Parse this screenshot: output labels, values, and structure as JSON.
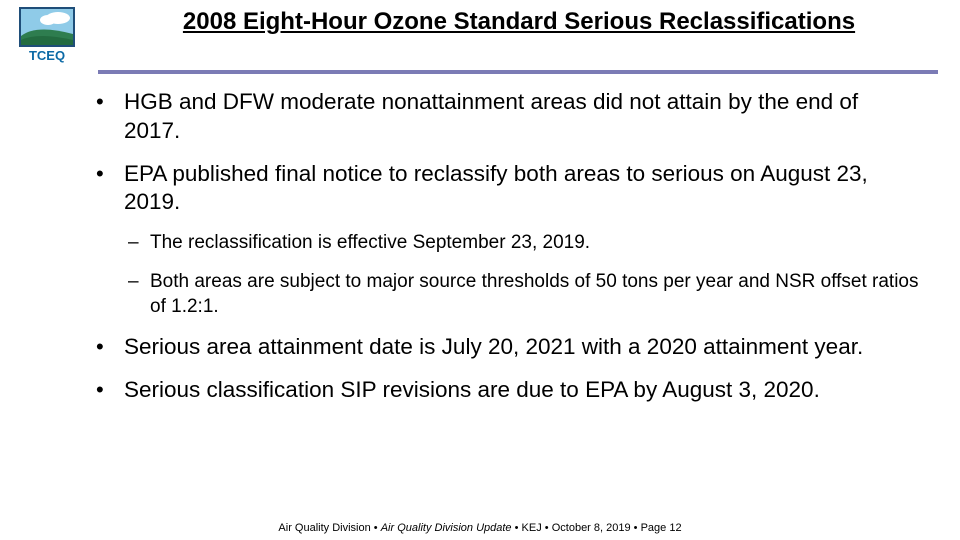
{
  "title": "2008 Eight-Hour Ozone Standard Serious Reclassifications",
  "accent_color": "#7b7bb5",
  "logo": {
    "name": "TCEQ",
    "sky": "#8fcbe8",
    "cloud": "#ffffff",
    "hill": "#2e7d4f",
    "frame": "#1f4e79",
    "text": "#0c6aa6"
  },
  "bullets": [
    {
      "text": "HGB and DFW moderate nonattainment areas did not attain by the end of 2017."
    },
    {
      "text": "EPA published final notice to reclassify both areas to serious on August 23, 2019.",
      "sub": [
        "The reclassification is effective September 23, 2019.",
        "Both areas are subject to major source thresholds of 50 tons per year and NSR offset ratios of 1.2:1."
      ]
    },
    {
      "text": "Serious area attainment date is July 20, 2021 with a 2020 attainment year."
    },
    {
      "text": "Serious classification SIP revisions are due to EPA by August 3, 2020."
    }
  ],
  "footer": {
    "division": "Air Quality Division",
    "doc": "Air Quality Division Update",
    "author": "KEJ",
    "date": "October 8, 2019",
    "page": "Page 12"
  }
}
